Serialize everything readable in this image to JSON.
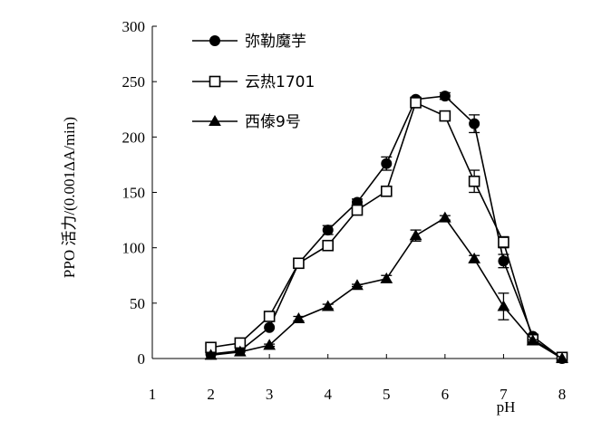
{
  "chart_data": {
    "type": "line",
    "title": "",
    "xlabel": "pH",
    "ylabel": "PPO 活力/(0.001ΔA/min)",
    "xlim": [
      1,
      8
    ],
    "ylim": [
      0,
      300
    ],
    "x_ticks": [
      "1",
      "2",
      "3",
      "4",
      "5",
      "6",
      "7",
      "8"
    ],
    "y_ticks": [
      "0",
      "50",
      "100",
      "150",
      "200",
      "250",
      "300"
    ],
    "legend_position": "top-left",
    "grid": false,
    "error_bars": true,
    "series": [
      {
        "name": "弥勒魔芋",
        "marker": "filled-circle",
        "color": "#000000",
        "points": [
          {
            "x": 2.0,
            "y": 4,
            "err": 0
          },
          {
            "x": 2.5,
            "y": 7,
            "err": 0
          },
          {
            "x": 3.0,
            "y": 28,
            "err": 0
          },
          {
            "x": 3.5,
            "y": 86,
            "err": 2
          },
          {
            "x": 4.0,
            "y": 116,
            "err": 4
          },
          {
            "x": 4.5,
            "y": 141,
            "err": 3
          },
          {
            "x": 5.0,
            "y": 176,
            "err": 6
          },
          {
            "x": 5.5,
            "y": 234,
            "err": 2
          },
          {
            "x": 6.0,
            "y": 237,
            "err": 3
          },
          {
            "x": 6.5,
            "y": 212,
            "err": 8
          },
          {
            "x": 7.0,
            "y": 88,
            "err": 6
          },
          {
            "x": 7.5,
            "y": 20,
            "err": 2
          },
          {
            "x": 8.0,
            "y": 0,
            "err": 0
          }
        ]
      },
      {
        "name": "云热1701",
        "marker": "open-square",
        "color": "#000000",
        "points": [
          {
            "x": 2.0,
            "y": 10,
            "err": 0
          },
          {
            "x": 2.5,
            "y": 14,
            "err": 0
          },
          {
            "x": 3.0,
            "y": 38,
            "err": 0
          },
          {
            "x": 3.5,
            "y": 86,
            "err": 2
          },
          {
            "x": 4.0,
            "y": 102,
            "err": 3
          },
          {
            "x": 4.5,
            "y": 134,
            "err": 4
          },
          {
            "x": 5.0,
            "y": 151,
            "err": 3
          },
          {
            "x": 5.5,
            "y": 231,
            "err": 3
          },
          {
            "x": 6.0,
            "y": 219,
            "err": 3
          },
          {
            "x": 6.5,
            "y": 160,
            "err": 10
          },
          {
            "x": 7.0,
            "y": 105,
            "err": 5
          },
          {
            "x": 7.5,
            "y": 17,
            "err": 2
          },
          {
            "x": 8.0,
            "y": 1,
            "err": 0
          }
        ]
      },
      {
        "name": "西傣9号",
        "marker": "filled-triangle",
        "color": "#000000",
        "points": [
          {
            "x": 2.0,
            "y": 3,
            "err": 0
          },
          {
            "x": 2.5,
            "y": 6,
            "err": 0
          },
          {
            "x": 3.0,
            "y": 12,
            "err": 1
          },
          {
            "x": 3.5,
            "y": 36,
            "err": 2
          },
          {
            "x": 4.0,
            "y": 47,
            "err": 2
          },
          {
            "x": 4.5,
            "y": 66,
            "err": 1
          },
          {
            "x": 5.0,
            "y": 72,
            "err": 3
          },
          {
            "x": 5.5,
            "y": 111,
            "err": 5
          },
          {
            "x": 6.0,
            "y": 127,
            "err": 2
          },
          {
            "x": 6.5,
            "y": 90,
            "err": 3
          },
          {
            "x": 7.0,
            "y": 47,
            "err": 12
          },
          {
            "x": 7.5,
            "y": 16,
            "err": 1
          },
          {
            "x": 8.0,
            "y": 0,
            "err": 0
          }
        ]
      }
    ]
  }
}
